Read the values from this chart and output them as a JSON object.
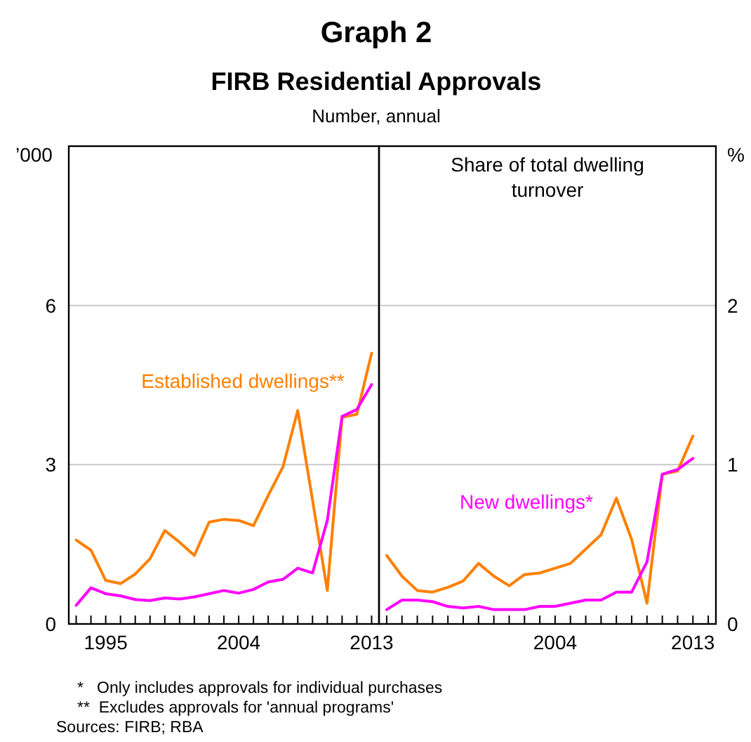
{
  "chart_data": [
    {
      "type": "line",
      "title": "Graph 2",
      "subtitle": "FIRB Residential Approvals",
      "ylabel": "’000",
      "annotations": [
        "Number, annual",
        "*   Only includes approvals for individual purchases",
        "**  Excludes approvals for 'annual programs'",
        "Sources: FIRB; RBA"
      ],
      "x": [
        1993,
        1994,
        1995,
        1996,
        1997,
        1998,
        1999,
        2000,
        2001,
        2002,
        2003,
        2004,
        2005,
        2006,
        2007,
        2008,
        2009,
        2010,
        2011,
        2012,
        2013
      ],
      "series": [
        {
          "name": "Established dwellings**",
          "color": "#ff8000",
          "values": [
            1.58,
            1.39,
            0.82,
            0.76,
            0.94,
            1.23,
            1.76,
            1.54,
            1.29,
            1.92,
            1.97,
            1.95,
            1.85,
            2.42,
            2.96,
            4.02,
            2.33,
            0.63,
            3.89,
            3.95,
            5.1
          ]
        },
        {
          "color": "#ff00ff",
          "values": [
            0.35,
            0.68,
            0.57,
            0.53,
            0.46,
            0.44,
            0.49,
            0.47,
            0.51,
            0.57,
            0.63,
            0.58,
            0.65,
            0.79,
            0.84,
            1.05,
            0.96,
            1.95,
            3.91,
            4.04,
            4.51
          ]
        }
      ],
      "xlim": [
        1992.5,
        2013.5
      ],
      "xticks": [
        {
          "value": 1993,
          "label": null
        },
        {
          "value": 1994,
          "label": null
        },
        1995,
        {
          "value": 1996,
          "label": null
        },
        {
          "value": 1997,
          "label": null
        },
        {
          "value": 1998,
          "label": null
        },
        {
          "value": 1999,
          "label": null
        },
        {
          "value": 2000,
          "label": null
        },
        {
          "value": 2001,
          "label": null
        },
        {
          "value": 2002,
          "label": null
        },
        {
          "value": 2003,
          "label": null
        },
        2004,
        {
          "value": 2005,
          "label": null
        },
        {
          "value": 2006,
          "label": null
        },
        {
          "value": 2007,
          "label": null
        },
        {
          "value": 2008,
          "label": null
        },
        {
          "value": 2009,
          "label": null
        },
        {
          "value": 2010,
          "label": null
        },
        {
          "value": 2011,
          "label": null
        },
        {
          "value": 2012,
          "label": null
        },
        2013
      ],
      "ylim": [
        0,
        9
      ],
      "yticks": [
        0,
        3,
        6
      ],
      "grid": "y"
    },
    {
      "type": "line",
      "title": "Share of total dwelling turnover",
      "ylabel": "%",
      "x": [
        1993,
        1994,
        1995,
        1996,
        1997,
        1998,
        1999,
        2000,
        2001,
        2002,
        2003,
        2004,
        2005,
        2006,
        2007,
        2008,
        2009,
        2010,
        2011,
        2012,
        2013
      ],
      "series": [
        {
          "color": "#ff8000",
          "values": [
            0.43,
            0.3,
            0.21,
            0.2,
            0.23,
            0.27,
            0.38,
            0.3,
            0.24,
            0.31,
            0.32,
            0.35,
            0.38,
            0.47,
            0.56,
            0.79,
            0.53,
            0.13,
            0.94,
            0.96,
            1.18
          ]
        },
        {
          "name": "New dwellings*",
          "color": "#ff00ff",
          "values": [
            0.09,
            0.15,
            0.15,
            0.14,
            0.11,
            0.1,
            0.11,
            0.09,
            0.09,
            0.09,
            0.11,
            0.11,
            0.13,
            0.15,
            0.15,
            0.2,
            0.2,
            0.39,
            0.94,
            0.97,
            1.04
          ]
        }
      ],
      "xlim": [
        1992.5,
        2014.5
      ],
      "xticks": [
        {
          "value": 1993,
          "label": null
        },
        {
          "value": 1994,
          "label": null
        },
        {
          "value": 1995,
          "label": null
        },
        {
          "value": 1996,
          "label": null
        },
        {
          "value": 1997,
          "label": null
        },
        {
          "value": 1998,
          "label": null
        },
        {
          "value": 1999,
          "label": null
        },
        {
          "value": 2000,
          "label": null
        },
        {
          "value": 2001,
          "label": null
        },
        {
          "value": 2002,
          "label": null
        },
        {
          "value": 2003,
          "label": null
        },
        2004,
        {
          "value": 2005,
          "label": null
        },
        {
          "value": 2006,
          "label": null
        },
        {
          "value": 2007,
          "label": null
        },
        {
          "value": 2008,
          "label": null
        },
        {
          "value": 2009,
          "label": null
        },
        {
          "value": 2010,
          "label": null
        },
        {
          "value": 2011,
          "label": null
        },
        {
          "value": 2012,
          "label": null
        },
        2013,
        {
          "value": 2014,
          "label": null
        }
      ],
      "ylim": [
        0,
        3
      ],
      "yticks": [
        0,
        1,
        2
      ],
      "grid": "y"
    }
  ]
}
